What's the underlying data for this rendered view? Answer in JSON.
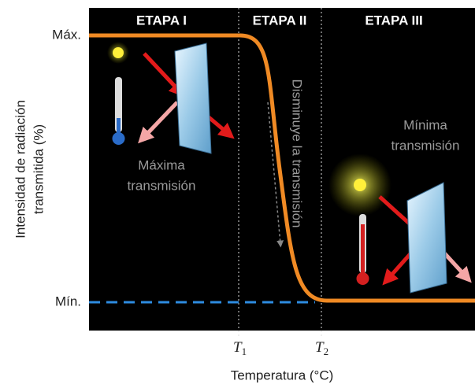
{
  "stages": [
    "ETAPA I",
    "ETAPA II",
    "ETAPA III"
  ],
  "y_axis": {
    "title_lines": [
      "Intensidad de radiación",
      "transmitida (%)"
    ],
    "max_label": "Máx.",
    "min_label": "Mín."
  },
  "x_axis": {
    "title": "Temperatura (°C)",
    "ticks": [
      {
        "symbol": "T",
        "subscript": "1"
      },
      {
        "symbol": "T",
        "subscript": "2"
      }
    ]
  },
  "annotations": {
    "max_transmission": [
      "Máxima",
      "transmisión"
    ],
    "min_transmission": [
      "Mínima",
      "transmisión"
    ],
    "decrease": "Disminuye la transmisión"
  }
}
